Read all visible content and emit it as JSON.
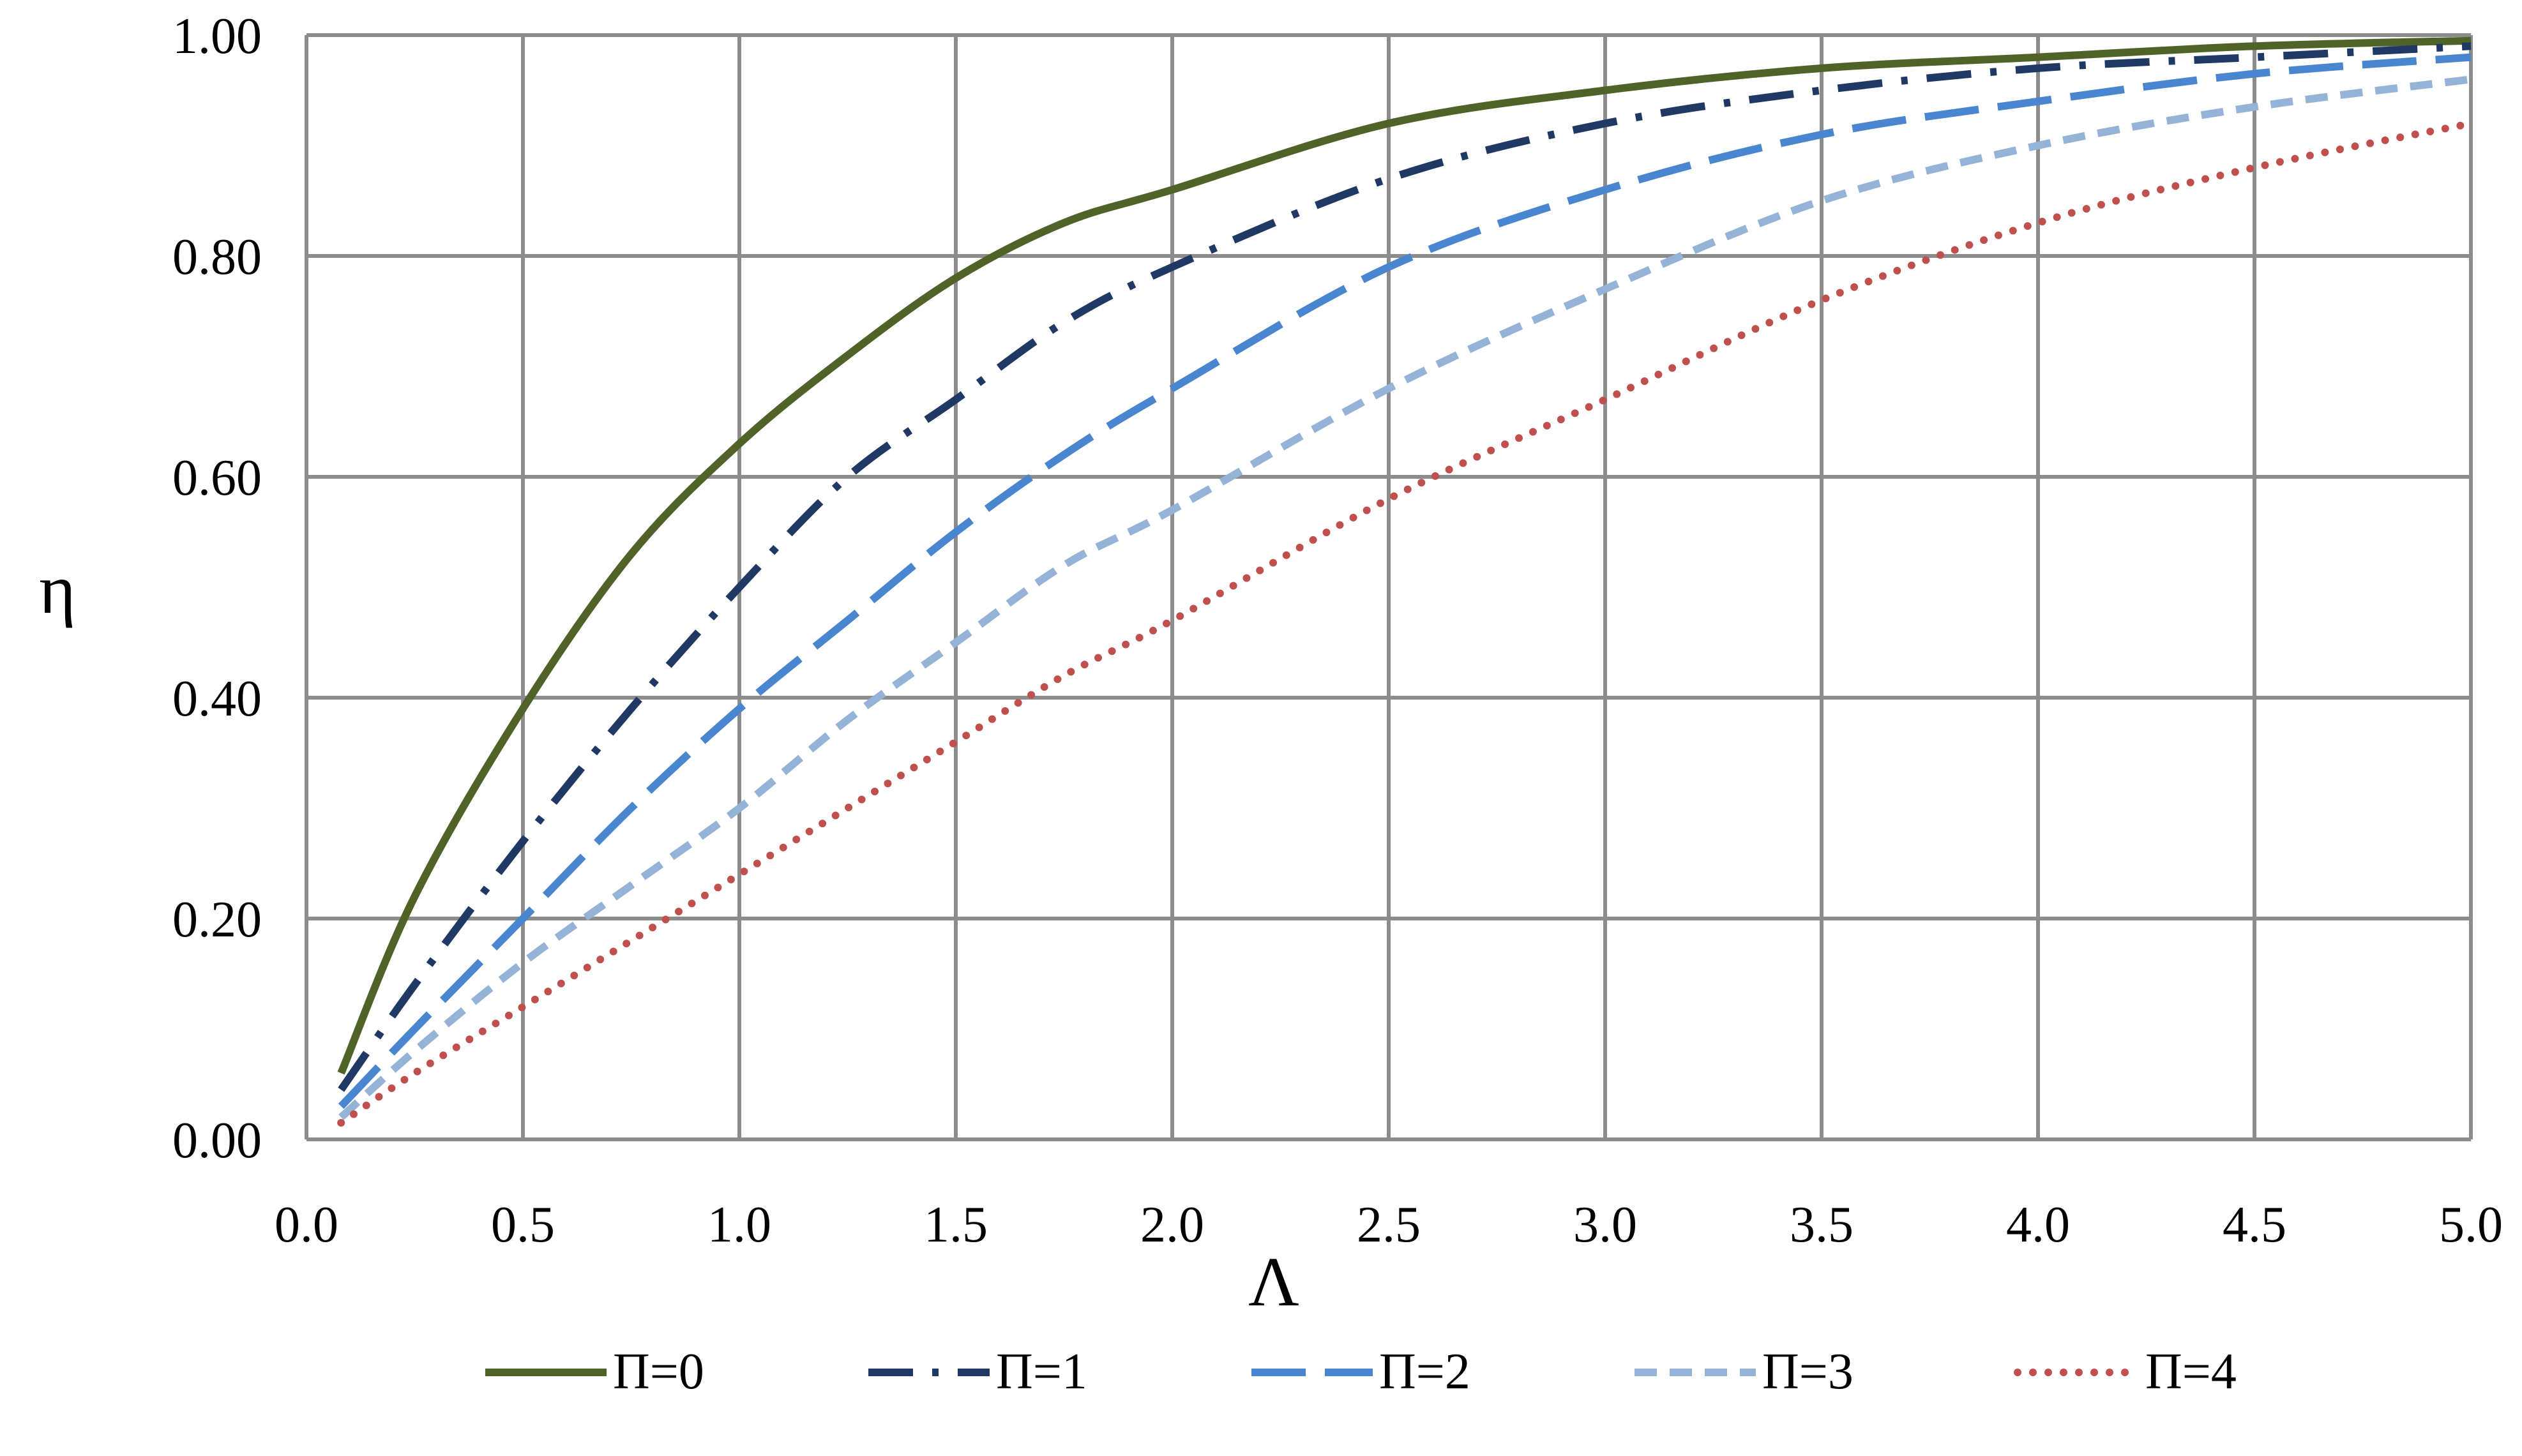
{
  "chart_data": {
    "type": "line",
    "xlabel": "Λ",
    "ylabel": "η",
    "xlim": [
      0,
      5
    ],
    "ylim": [
      0,
      1
    ],
    "x_ticks": [
      "0.0",
      "0.5",
      "1.0",
      "1.5",
      "2.0",
      "2.5",
      "3.0",
      "3.5",
      "4.0",
      "4.5",
      "5.0"
    ],
    "y_ticks": [
      "0.00",
      "0.20",
      "0.40",
      "0.60",
      "0.80",
      "1.00"
    ],
    "grid": true,
    "legend_position": "bottom",
    "series": [
      {
        "name": "Π=0",
        "color": "#4F6228",
        "style": "solid",
        "x": [
          0.08,
          0.25,
          0.5,
          0.75,
          1.0,
          1.25,
          1.5,
          1.75,
          2.0,
          2.5,
          3.0,
          3.5,
          4.0,
          4.5,
          5.0
        ],
        "y": [
          0.06,
          0.22,
          0.39,
          0.53,
          0.63,
          0.71,
          0.78,
          0.83,
          0.86,
          0.92,
          0.95,
          0.97,
          0.98,
          0.99,
          0.995
        ]
      },
      {
        "name": "Π=1",
        "color": "#1F3864",
        "style": "dashdot",
        "x": [
          0.08,
          0.25,
          0.5,
          0.75,
          1.0,
          1.25,
          1.5,
          1.75,
          2.0,
          2.5,
          3.0,
          3.5,
          4.0,
          4.5,
          5.0
        ],
        "y": [
          0.045,
          0.14,
          0.27,
          0.39,
          0.5,
          0.6,
          0.67,
          0.74,
          0.79,
          0.87,
          0.92,
          0.95,
          0.97,
          0.98,
          0.99
        ]
      },
      {
        "name": "Π=2",
        "color": "#4A86D0",
        "style": "longdash",
        "x": [
          0.08,
          0.25,
          0.5,
          0.75,
          1.0,
          1.25,
          1.5,
          1.75,
          2.0,
          2.5,
          3.0,
          3.5,
          4.0,
          4.5,
          5.0
        ],
        "y": [
          0.03,
          0.1,
          0.2,
          0.3,
          0.39,
          0.47,
          0.55,
          0.62,
          0.68,
          0.79,
          0.86,
          0.91,
          0.94,
          0.965,
          0.98
        ]
      },
      {
        "name": "Π=3",
        "color": "#95B3D7",
        "style": "shortdash",
        "x": [
          0.08,
          0.25,
          0.5,
          0.75,
          1.0,
          1.25,
          1.5,
          1.75,
          2.0,
          2.5,
          3.0,
          3.5,
          4.0,
          4.5,
          5.0
        ],
        "y": [
          0.02,
          0.08,
          0.16,
          0.23,
          0.3,
          0.38,
          0.45,
          0.52,
          0.57,
          0.68,
          0.77,
          0.85,
          0.9,
          0.935,
          0.96
        ]
      },
      {
        "name": "Π=4",
        "color": "#C0504D",
        "style": "dot",
        "x": [
          0.08,
          0.25,
          0.5,
          0.75,
          1.0,
          1.25,
          1.5,
          1.75,
          2.0,
          2.5,
          3.0,
          3.5,
          4.0,
          4.5,
          5.0
        ],
        "y": [
          0.015,
          0.06,
          0.12,
          0.18,
          0.24,
          0.3,
          0.36,
          0.42,
          0.47,
          0.58,
          0.67,
          0.76,
          0.83,
          0.88,
          0.92
        ]
      }
    ]
  }
}
